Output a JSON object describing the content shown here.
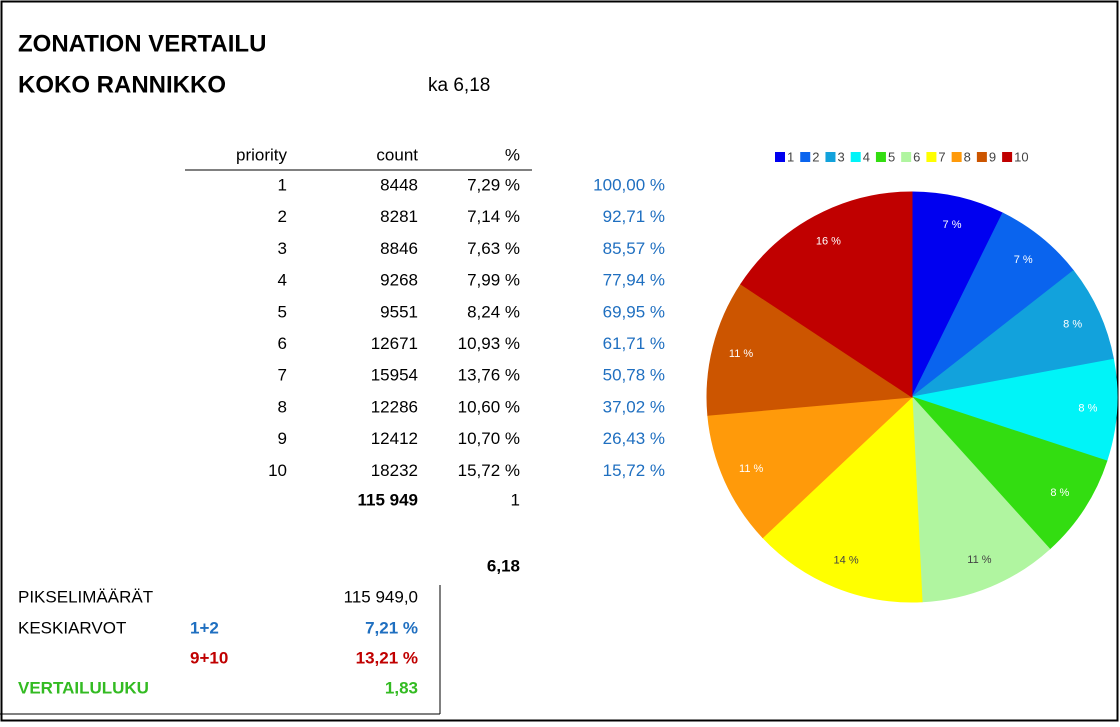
{
  "header": {
    "title": "ZONATION VERTAILU",
    "subtitle": "KOKO RANNIKKO",
    "average": "ka 6,18"
  },
  "table": {
    "columns": [
      "priority",
      "count",
      "%"
    ],
    "rows": [
      [
        "1",
        "8448",
        "7,29 %",
        "100,00 %"
      ],
      [
        "2",
        "8281",
        "7,14 %",
        "92,71 %"
      ],
      [
        "3",
        "8846",
        "7,63 %",
        "85,57 %"
      ],
      [
        "4",
        "9268",
        "7,99 %",
        "77,94 %"
      ],
      [
        "5",
        "9551",
        "8,24 %",
        "69,95 %"
      ],
      [
        "6",
        "12671",
        "10,93 %",
        "61,71 %"
      ],
      [
        "7",
        "15954",
        "13,76 %",
        "50,78 %"
      ],
      [
        "8",
        "12286",
        "10,60 %",
        "37,02 %"
      ],
      [
        "9",
        "12412",
        "10,70 %",
        "26,43 %"
      ],
      [
        "10",
        "18232",
        "15,72 %",
        "15,72 %"
      ]
    ],
    "totals": [
      "115 949",
      "1"
    ],
    "weighted": "6,18"
  },
  "summary": {
    "pixels": {
      "label": "PIKSELIMÄÄRÄT",
      "value": "115 949,0"
    },
    "averages": {
      "label": "KESKIARVOT",
      "low_key": "1+2",
      "low_value": "7,21 %",
      "high_key": "9+10",
      "high_value": "13,21 %"
    },
    "ratio": {
      "label": "VERTAILULUKU",
      "value": "1,83"
    }
  },
  "chart_data": {
    "type": "pie",
    "categories": [
      "1",
      "2",
      "3",
      "4",
      "5",
      "6",
      "7",
      "8",
      "9",
      "10"
    ],
    "values": [
      7.29,
      7.14,
      7.63,
      7.99,
      8.24,
      10.93,
      13.76,
      10.6,
      10.7,
      15.72
    ],
    "value_labels": [
      "7 %",
      "7 %",
      "8 %",
      "8 %",
      "8 %",
      "11 %",
      "14 %",
      "11 %",
      "11 %",
      "16 %"
    ],
    "colors": [
      "#0000f0",
      "#0a64ee",
      "#12a2dc",
      "#00f4f8",
      "#33dd11",
      "#b0f5a0",
      "#ffff00",
      "#ff9a0a",
      "#cc5500",
      "#c00000"
    ],
    "legend": "top"
  }
}
